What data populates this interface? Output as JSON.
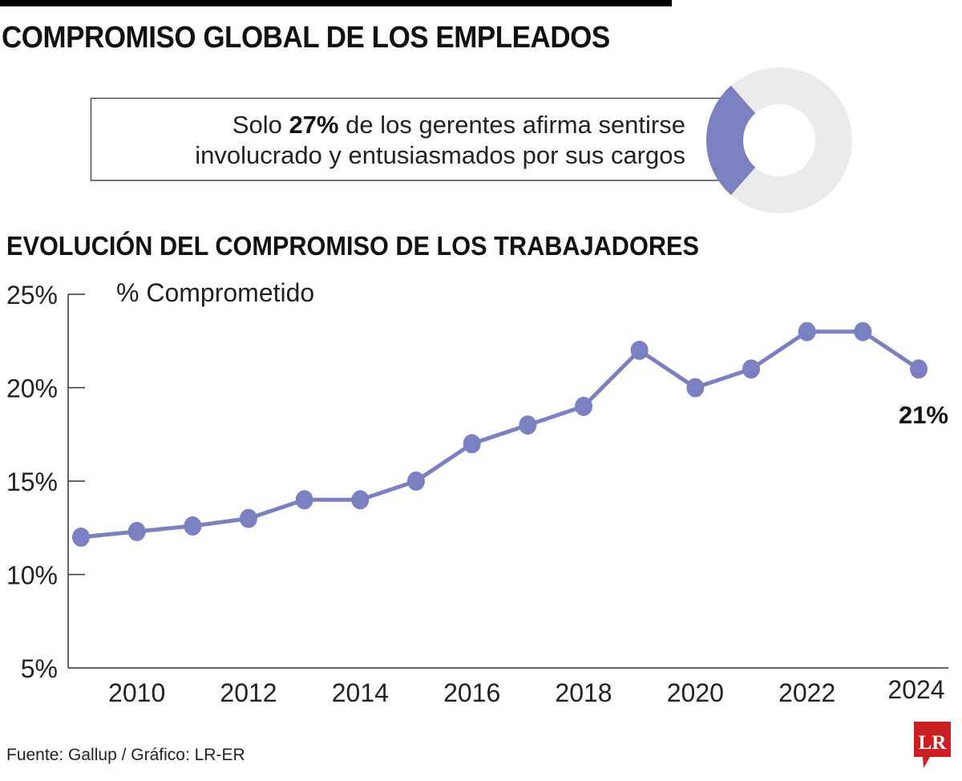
{
  "header": {
    "title": "COMPROMISO GLOBAL DE LOS EMPLEADOS"
  },
  "callout": {
    "prefix": "Solo ",
    "highlight": "27%",
    "suffix_line1": " de los gerentes afirma sentirse",
    "line2": "involucrado y entusiasmados por sus cargos",
    "donut_value_percent": 27
  },
  "colors": {
    "accent": "#7a80c0",
    "donut_rest": "#ebebeb",
    "axis": "#333333",
    "logo_red": "#cc1f24"
  },
  "chart_title": "EVOLUCIÓN DEL COMPROMISO DE LOS TRABAJADORES",
  "chart_data": {
    "type": "line",
    "title": "EVOLUCIÓN DEL COMPROMISO DE LOS TRABAJADORES",
    "ylabel": "% Comprometido",
    "xlabel": "",
    "x": [
      2009,
      2010,
      2011,
      2012,
      2013,
      2014,
      2015,
      2016,
      2017,
      2018,
      2019,
      2020,
      2021,
      2022,
      2023,
      2024
    ],
    "series": [
      {
        "name": "% Comprometido",
        "values": [
          12,
          12.3,
          12.6,
          13,
          14,
          14,
          15,
          17,
          18,
          19,
          22,
          20,
          21,
          23,
          23,
          21
        ]
      }
    ],
    "ylim": [
      5,
      25
    ],
    "xlim": [
      2009,
      2024
    ],
    "yticks": [
      5,
      10,
      15,
      20,
      25
    ],
    "ytick_labels": [
      "5%",
      "10%",
      "15%",
      "20%",
      "25%"
    ],
    "xticks": [
      2010,
      2012,
      2014,
      2016,
      2018,
      2020,
      2022,
      2024
    ],
    "xtick_labels": [
      "2010",
      "2012",
      "2014",
      "2016",
      "2018",
      "2020",
      "2022",
      "2024"
    ],
    "annotations": [
      {
        "x": 2024,
        "text": "21%"
      }
    ],
    "grid": false,
    "legend": "none"
  },
  "footer": {
    "source": "Fuente: Gallup / Gráfico: LR-ER",
    "logo_text": "LR"
  }
}
